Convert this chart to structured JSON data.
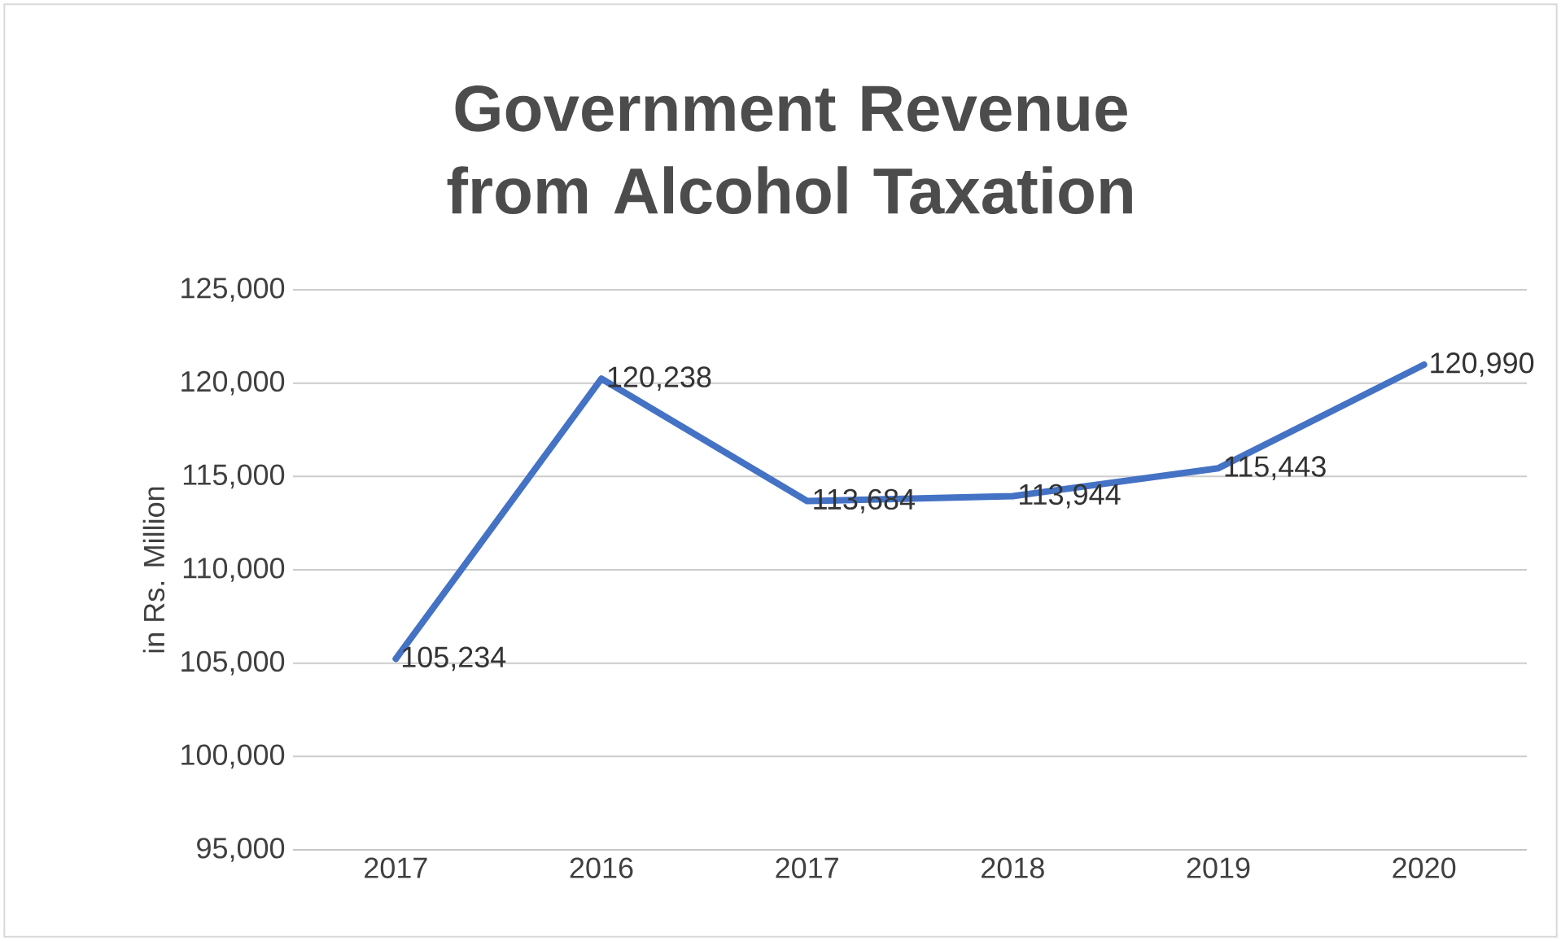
{
  "chart_data": {
    "type": "line",
    "title": "Government Revenue from Alcohol Taxation",
    "ylabel": "in Rs. Million",
    "categories": [
      "2017",
      "2016",
      "2017",
      "2018",
      "2019",
      "2020"
    ],
    "series": [
      {
        "color": "#4472c4",
        "values": [
          105234,
          120238,
          113684,
          113944,
          115443,
          120990
        ],
        "value_labels": [
          "105,234",
          "120,238",
          "113,684",
          "113,944",
          "115,443",
          "120,990"
        ]
      }
    ],
    "ylim": [
      95000,
      125000
    ],
    "yticks": [
      {
        "value": 95000,
        "label": "95,000"
      },
      {
        "value": 100000,
        "label": "100,000"
      },
      {
        "value": 105000,
        "label": "105,000"
      },
      {
        "value": 110000,
        "label": "110,000"
      },
      {
        "value": 115000,
        "label": "115,000"
      },
      {
        "value": 120000,
        "label": "120,000"
      },
      {
        "value": 125000,
        "label": "125,000"
      }
    ],
    "grid": "y",
    "marker": "none",
    "line_style": "solid"
  }
}
